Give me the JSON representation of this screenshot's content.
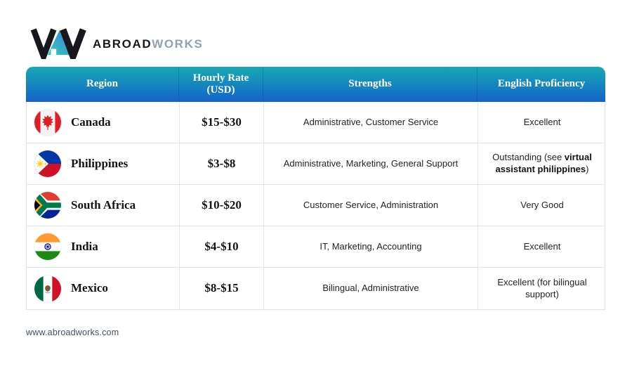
{
  "logo": {
    "brand_bold": "ABROAD",
    "brand_light": "WORKS"
  },
  "table": {
    "headers": {
      "region": "Region",
      "rate": "Hourly Rate\n(USD)",
      "strengths": "Strengths",
      "proficiency": "English Proficiency"
    },
    "rows": [
      {
        "flag": "canada-flag-icon",
        "region": "Canada",
        "rate": "$15-$30",
        "strengths": "Administrative, Customer Service",
        "proficiency": [
          {
            "text": "Excellent",
            "bold": false
          }
        ]
      },
      {
        "flag": "philippines-flag-icon",
        "region": "Philippines",
        "rate": "$3-$8",
        "strengths": "Administrative, Marketing, General Support",
        "proficiency": [
          {
            "text": "Outstanding (see ",
            "bold": false
          },
          {
            "text": "virtual assistant philippines",
            "bold": true
          },
          {
            "text": ")",
            "bold": false
          }
        ]
      },
      {
        "flag": "south-africa-flag-icon",
        "region": "South Africa",
        "rate": "$10-$20",
        "strengths": "Customer Service, Administration",
        "proficiency": [
          {
            "text": "Very Good",
            "bold": false
          }
        ]
      },
      {
        "flag": "india-flag-icon",
        "region": "India",
        "rate": "$4-$10",
        "strengths": "IT, Marketing, Accounting",
        "proficiency": [
          {
            "text": "Excellent",
            "bold": false
          }
        ]
      },
      {
        "flag": "mexico-flag-icon",
        "region": "Mexico",
        "rate": "$8-$15",
        "strengths": "Bilingual, Administrative",
        "proficiency": [
          {
            "text": "Excellent (for bilingual support)",
            "bold": false
          }
        ]
      }
    ]
  },
  "footer": {
    "website": "www.abroadworks.com"
  },
  "colors": {
    "header_gradient_top": "#16a9b4",
    "header_gradient_bottom": "#1563c9",
    "logo_gradient_top": "#3f7de0",
    "logo_gradient_bottom": "#2fd0b4"
  }
}
